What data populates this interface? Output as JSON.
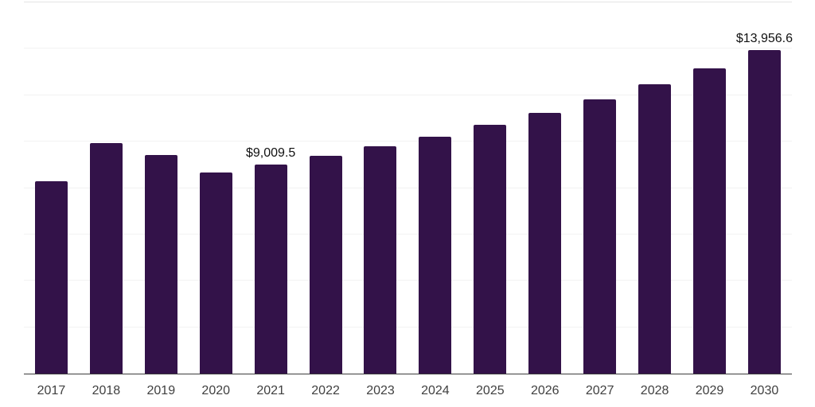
{
  "chart_data": {
    "type": "bar",
    "title": "",
    "xlabel": "",
    "ylabel": "",
    "categories": [
      "2017",
      "2018",
      "2019",
      "2020",
      "2021",
      "2022",
      "2023",
      "2024",
      "2025",
      "2026",
      "2027",
      "2028",
      "2029",
      "2030"
    ],
    "values": [
      8300,
      9950,
      9410,
      8670,
      9009.5,
      9390,
      9790,
      10200,
      10740,
      11250,
      11830,
      12480,
      13160,
      13956.6
    ],
    "data_labels": {
      "2021": "$9,009.5",
      "2030": "$13,956.6"
    },
    "ylim": [
      0,
      16000
    ],
    "gridline_step": 2000,
    "grid": true,
    "legend": "none",
    "bar_color": "#331249",
    "gridline_color": "#f2f2f2",
    "axis_line_color": "#3c3c3c",
    "top_border_color": "#e4e4e4",
    "tick_label_color": "#404040",
    "data_label_color": "#111111"
  }
}
